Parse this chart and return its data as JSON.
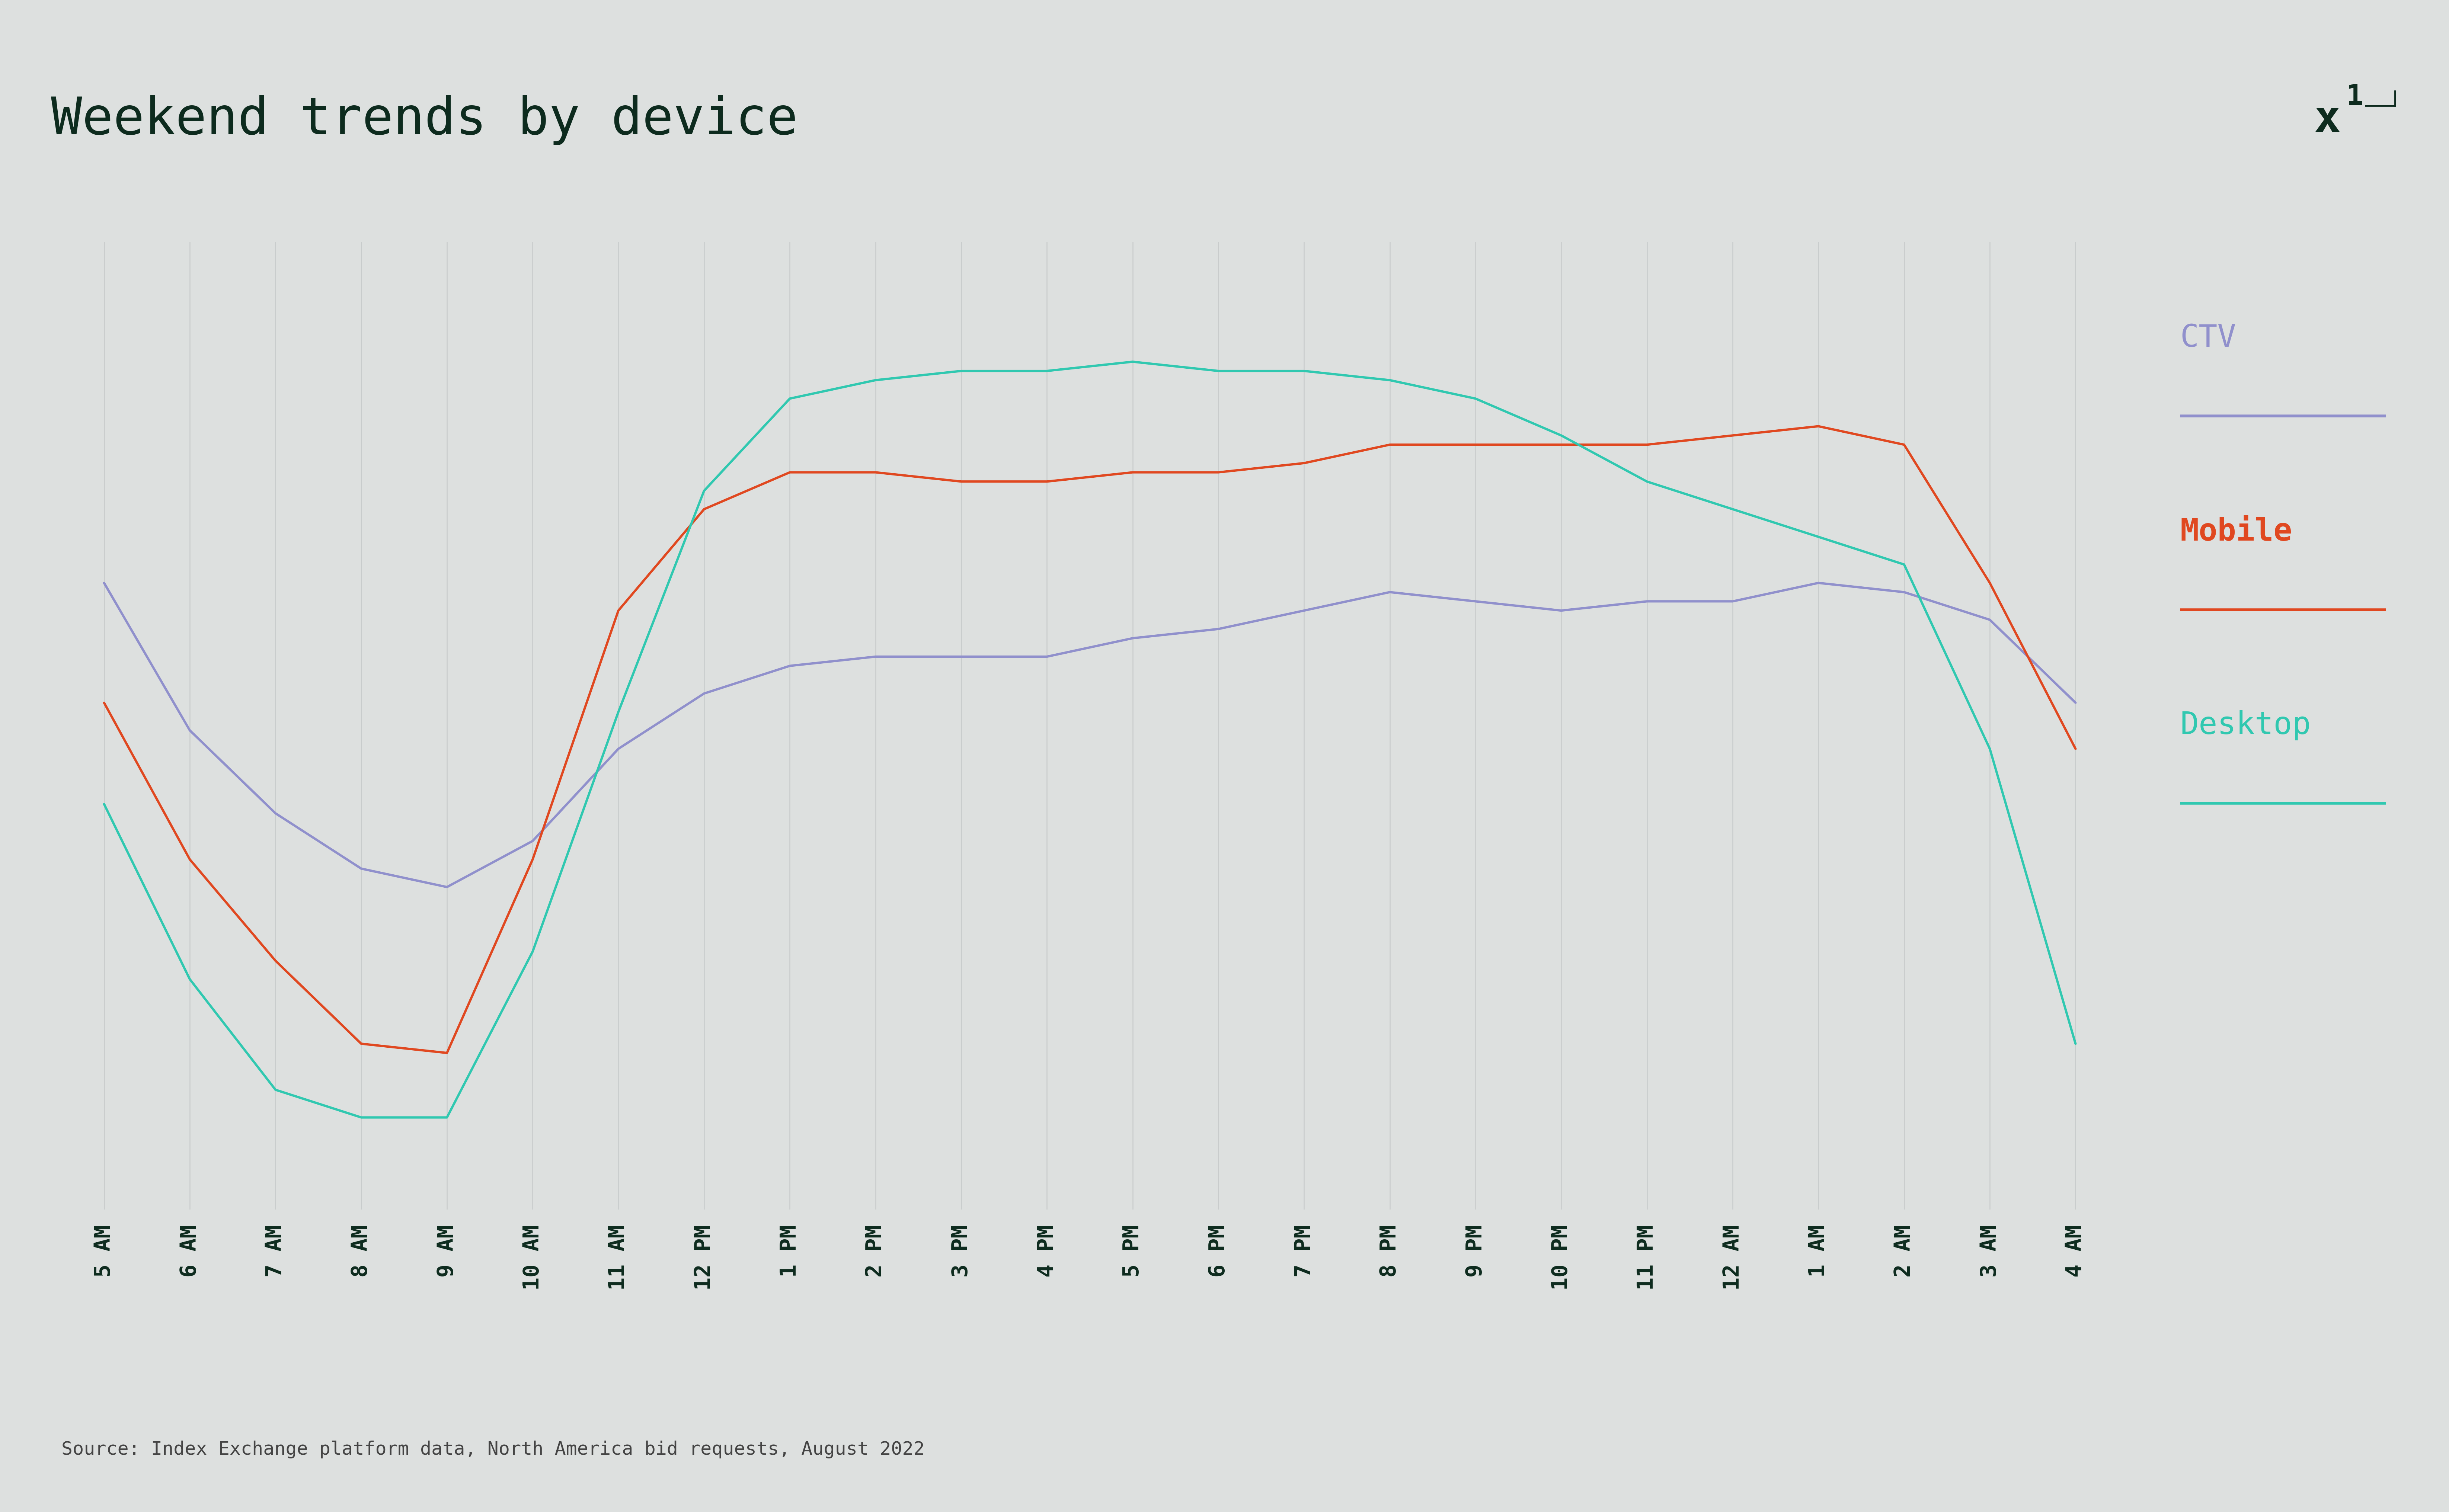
{
  "title": "Weekend trends by device",
  "source_text": "Source: Index Exchange platform data, North America bid requests, August 2022",
  "background_color": "#dde0df",
  "title_color": "#0d2b1e",
  "source_color": "#444444",
  "x_labels": [
    "5 AM",
    "6 AM",
    "7 AM",
    "8 AM",
    "9 AM",
    "10 AM",
    "11 AM",
    "12 PM",
    "1 PM",
    "2 PM",
    "3 PM",
    "4 PM",
    "5 PM",
    "6 PM",
    "7 PM",
    "8 PM",
    "9 PM",
    "10 PM",
    "11 PM",
    "12 AM",
    "1 AM",
    "2 AM",
    "3 AM",
    "4 AM"
  ],
  "ctv": [
    68,
    52,
    43,
    37,
    35,
    40,
    50,
    56,
    59,
    60,
    60,
    60,
    62,
    63,
    65,
    67,
    66,
    65,
    66,
    66,
    68,
    67,
    64,
    55
  ],
  "mobile": [
    55,
    38,
    27,
    18,
    17,
    38,
    65,
    76,
    80,
    80,
    79,
    79,
    80,
    80,
    81,
    83,
    83,
    83,
    83,
    84,
    85,
    83,
    68,
    50
  ],
  "desktop": [
    44,
    25,
    13,
    10,
    10,
    28,
    54,
    78,
    88,
    90,
    91,
    91,
    92,
    91,
    91,
    90,
    88,
    84,
    79,
    76,
    73,
    70,
    50,
    18
  ],
  "ctv_color": "#9090cc",
  "mobile_color": "#e04820",
  "desktop_color": "#30c8b0",
  "grid_color": "#c8cccc",
  "line_width": 4.5,
  "legend_line_color_ctv": "#9090cc",
  "legend_line_color_mobile": "#e04820",
  "legend_line_color_desktop": "#30c8b0",
  "legend_label_color_ctv": "#9090cc",
  "legend_label_color_mobile": "#e04820",
  "legend_label_color_desktop": "#30c8b0",
  "figsize": [
    65.81,
    40.64
  ],
  "dpi": 100,
  "ylim_min": 0,
  "ylim_max": 105
}
